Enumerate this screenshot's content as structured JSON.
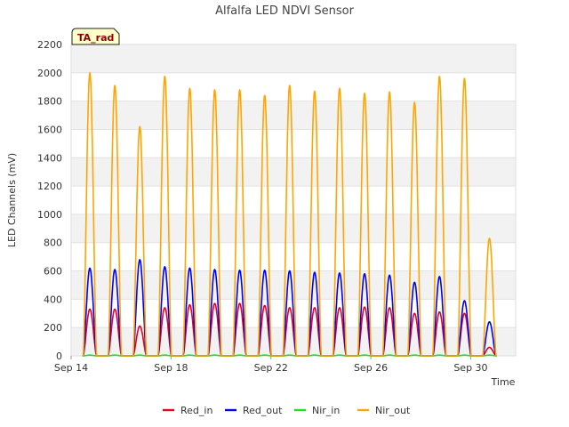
{
  "chart_data": {
    "type": "line",
    "title": "Alfalfa LED NDVI Sensor",
    "xlabel": "Time",
    "ylabel": "LED Channels (mV)",
    "badge": "TA_rad",
    "ylim": [
      0,
      2200
    ],
    "yticks": [
      0,
      200,
      400,
      600,
      800,
      1000,
      1200,
      1400,
      1600,
      1800,
      2000,
      2200
    ],
    "xlim": [
      0,
      17.8
    ],
    "xticks": [
      {
        "x": 0,
        "label": "Sep 14"
      },
      {
        "x": 4,
        "label": "Sep 18"
      },
      {
        "x": 8,
        "label": "Sep 22"
      },
      {
        "x": 12,
        "label": "Sep 26"
      },
      {
        "x": 16,
        "label": "Sep 30"
      }
    ],
    "day_centers": [
      0.75,
      1.75,
      2.75,
      3.75,
      4.75,
      5.75,
      6.75,
      7.75,
      8.75,
      9.75,
      10.75,
      11.75,
      12.75,
      13.75,
      14.75,
      15.75,
      16.75
    ],
    "series": [
      {
        "name": "Red_in",
        "color": "#e8001c",
        "peaks": [
          330,
          330,
          210,
          340,
          360,
          370,
          370,
          355,
          340,
          340,
          340,
          345,
          340,
          300,
          310,
          300,
          60
        ]
      },
      {
        "name": "Red_out",
        "color": "#0000ff",
        "peaks": [
          620,
          610,
          680,
          630,
          620,
          610,
          605,
          605,
          600,
          590,
          585,
          580,
          570,
          520,
          560,
          390,
          240
        ]
      },
      {
        "name": "Nir_in",
        "color": "#22dd22",
        "peaks": [
          5,
          5,
          5,
          5,
          5,
          5,
          5,
          5,
          5,
          5,
          5,
          5,
          5,
          5,
          5,
          5,
          5
        ]
      },
      {
        "name": "Nir_out",
        "color": "#ffa500",
        "peaks": [
          2000,
          1910,
          1620,
          1975,
          1890,
          1880,
          1880,
          1840,
          1910,
          1870,
          1890,
          1855,
          1865,
          1790,
          1975,
          1960,
          830
        ]
      }
    ]
  }
}
